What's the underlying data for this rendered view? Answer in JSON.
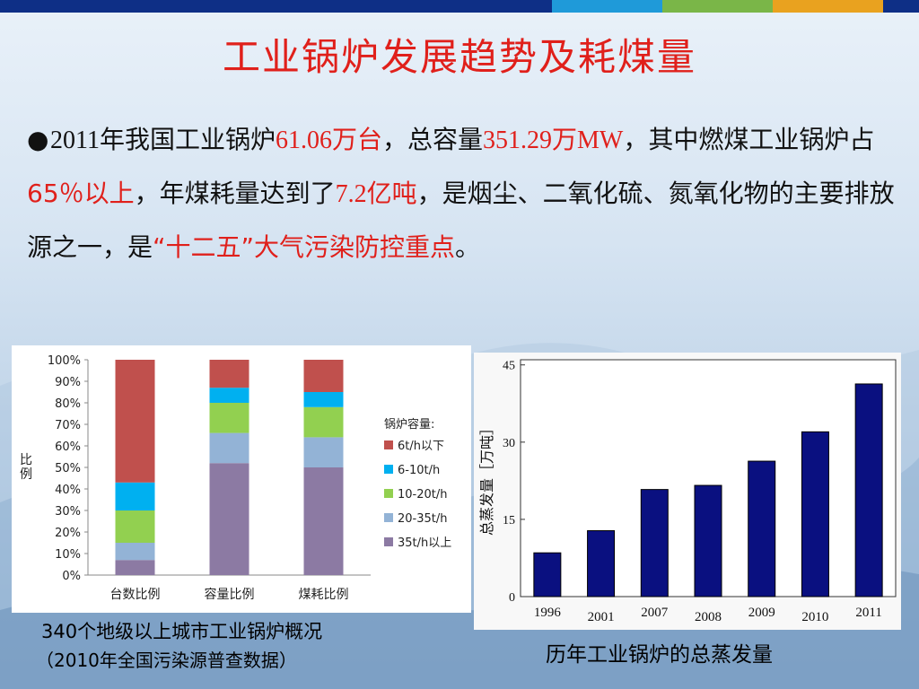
{
  "slide": {
    "title": "工业锅炉发展趋势及耗煤量",
    "paragraph": [
      {
        "text": "2011",
        "style": "serif"
      },
      {
        "text": "年我国工业锅炉",
        "style": ""
      },
      {
        "text": "61.06",
        "style": "hl serif"
      },
      {
        "text": "万台",
        "style": "hl"
      },
      {
        "text": "，总容量",
        "style": ""
      },
      {
        "text": "351.29",
        "style": "hl serif"
      },
      {
        "text": "万",
        "style": "hl"
      },
      {
        "text": "MW",
        "style": "hl serif"
      },
      {
        "text": "，其中燃煤工业锅炉占",
        "style": ""
      },
      {
        "text": "65％以上",
        "style": "hl"
      },
      {
        "text": "，年煤耗量达到了",
        "style": ""
      },
      {
        "text": "7.2",
        "style": "hl serif"
      },
      {
        "text": "亿吨",
        "style": "hl"
      },
      {
        "text": "，是烟尘、二氧化硫、氮氧化物的主要排放源之一，是",
        "style": ""
      },
      {
        "text": "“十二五”大气污染防控重点",
        "style": "hl"
      },
      {
        "text": "。",
        "style": ""
      }
    ],
    "left_caption_1": "340个地级以上城市工业锅炉概况",
    "left_caption_2": "（2010年全国污染源普查数据）",
    "right_caption": "历年工业锅炉的总蒸发量",
    "colors": {
      "title": "#e0201b",
      "bar_navy": "#0a1080"
    }
  },
  "chart_data": [
    {
      "type": "bar",
      "stacked": true,
      "categories": [
        "台数比例",
        "容量比例",
        "煤耗比例"
      ],
      "ylabel": "比例",
      "ylim": [
        0,
        100
      ],
      "yticks": [
        "0%",
        "10%",
        "20%",
        "30%",
        "40%",
        "50%",
        "60%",
        "70%",
        "80%",
        "90%",
        "100%"
      ],
      "legend_title": "锅炉容量:",
      "legend_position": "right",
      "series": [
        {
          "name": "35t/h以上",
          "color": "#8c7aa3",
          "values": [
            7,
            52,
            50
          ]
        },
        {
          "name": "20-35t/h",
          "color": "#93b3d6",
          "values": [
            8,
            14,
            14
          ]
        },
        {
          "name": "10-20t/h",
          "color": "#92d050",
          "values": [
            15,
            14,
            14
          ]
        },
        {
          "name": "6-10t/h",
          "color": "#00b0f0",
          "values": [
            13,
            7,
            7
          ]
        },
        {
          "name": "6t/h以下",
          "color": "#c0504d",
          "values": [
            57,
            13,
            15
          ]
        }
      ]
    },
    {
      "type": "bar",
      "categories": [
        "1996",
        "2001",
        "2007",
        "2008",
        "2009",
        "2010",
        "2011"
      ],
      "values": [
        8.5,
        12.8,
        20.8,
        21.6,
        26.3,
        32.0,
        41.3
      ],
      "ylabel": "总蒸发量［万吨］",
      "ylim": [
        0,
        46
      ],
      "yticks": [
        0,
        15,
        30,
        45
      ],
      "color": "#0a1080"
    }
  ]
}
